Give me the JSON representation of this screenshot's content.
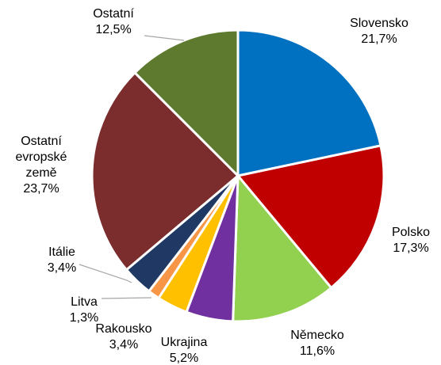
{
  "chart_data": {
    "type": "pie",
    "title": "",
    "slices": [
      {
        "label": "Slovensko",
        "value": 21.7,
        "display": "21,7%",
        "color": "#0070c0"
      },
      {
        "label": "Polsko",
        "value": 17.3,
        "display": "17,3%",
        "color": "#c00000"
      },
      {
        "label": "Německo",
        "value": 11.6,
        "display": "11,6%",
        "color": "#92d050"
      },
      {
        "label": "Ukrajina",
        "value": 5.2,
        "display": "5,2%",
        "color": "#7030a0"
      },
      {
        "label": "Rakousko",
        "value": 3.4,
        "display": "3,4%",
        "color": "#ffc000"
      },
      {
        "label": "Litva",
        "value": 1.3,
        "display": "1,3%",
        "color": "#f79646"
      },
      {
        "label": "Itálie",
        "value": 3.4,
        "display": "3,4%",
        "color": "#1f3864"
      },
      {
        "label": "Ostatní evropské země",
        "value": 23.7,
        "display": "23,7%",
        "color": "#7b2c2c"
      },
      {
        "label": "Ostatní",
        "value": 12.5,
        "display": "12,5%",
        "color": "#5e7a2e"
      }
    ]
  }
}
